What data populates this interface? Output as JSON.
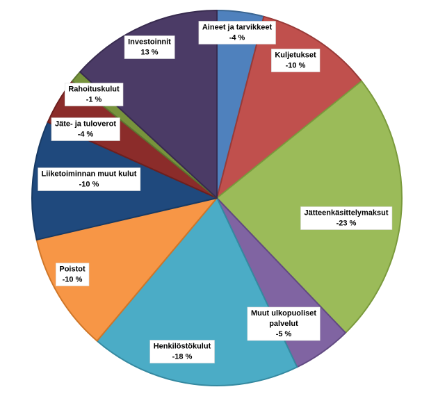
{
  "chart_data": {
    "type": "pie",
    "title": "",
    "slices": [
      {
        "label": "Aineet ja tarvikkeet",
        "value": 4,
        "display": "-4 %",
        "color": "#4f81bd",
        "edge": "#3a6591"
      },
      {
        "label": "Kuljetukset",
        "value": 10,
        "display": "-10 %",
        "color": "#c0504d",
        "edge": "#983a38"
      },
      {
        "label": "Jätteenkäsittelymaksut",
        "value": 23,
        "display": "-23 %",
        "color": "#9bbb59",
        "edge": "#7a9a3c"
      },
      {
        "label": "Muut ulkopuoliset palvelut",
        "value": 5,
        "display": "-5 %",
        "color": "#8064a2",
        "edge": "#624a82"
      },
      {
        "label": "Henkilöstökulut",
        "value": 18,
        "display": "-18 %",
        "color": "#4bacc6",
        "edge": "#3589a0"
      },
      {
        "label": "Poistot",
        "value": 10,
        "display": "-10 %",
        "color": "#f79646",
        "edge": "#cf7628"
      },
      {
        "label": "Liiketoiminnan muut kulut",
        "value": 10,
        "display": "-10 %",
        "color": "#1f497d",
        "edge": "#173a64"
      },
      {
        "label": "Jäte- ja tuloverot",
        "value": 4,
        "display": "-4 %",
        "color": "#8b2c2a",
        "edge": "#6d1f1e"
      },
      {
        "label": "Rahoituskulut",
        "value": 1,
        "display": "-1 %",
        "color": "#77933c",
        "edge": "#5c7430"
      },
      {
        "label": "Investoinnit",
        "value": 13,
        "display": "13 %",
        "color": "#4b3b66",
        "edge": "#382b4f"
      }
    ]
  }
}
